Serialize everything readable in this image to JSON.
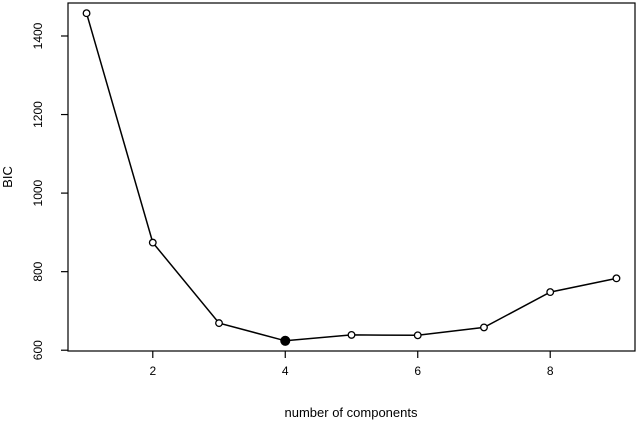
{
  "chart_data": {
    "type": "line",
    "title": "",
    "xlabel": "number of components",
    "ylabel": "BIC",
    "x": [
      1,
      2,
      3,
      4,
      5,
      6,
      7,
      8,
      9
    ],
    "y": [
      1458,
      874,
      669,
      624,
      639,
      638,
      658,
      748,
      783
    ],
    "highlight_x": 4,
    "xlim": [
      0.72,
      9.28
    ],
    "ylim": [
      598,
      1484
    ],
    "x_ticks": [
      2,
      4,
      6,
      8
    ],
    "y_ticks": [
      600,
      800,
      1000,
      1200,
      1400
    ],
    "grid": false,
    "markers": "open-circle",
    "highlight_marker": "filled-circle",
    "colors": {
      "line": "#000000",
      "marker_fill": "#ffffff",
      "highlight_fill": "#000000"
    }
  }
}
